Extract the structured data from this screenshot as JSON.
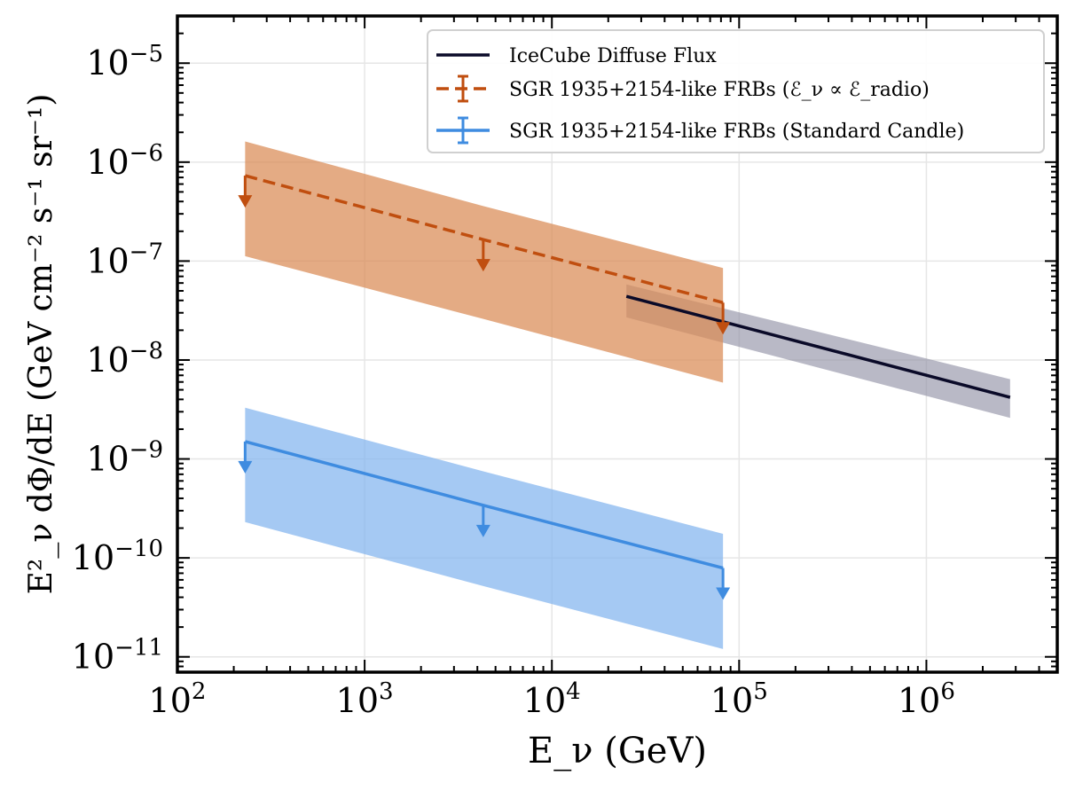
{
  "chart_data": {
    "type": "line",
    "title": "",
    "xlabel": "E_ν (GeV)",
    "ylabel": "E²_ν dΦ/dE (GeV cm⁻² s⁻¹ sr⁻¹)",
    "xscale": "log",
    "yscale": "log",
    "xlim": [
      100,
      5000000
    ],
    "ylim": [
      7e-12,
      3e-05
    ],
    "grid": true,
    "legend_position": "top-right",
    "x_major_exponents": [
      2,
      3,
      4,
      5,
      6
    ],
    "y_major_exponents": [
      -11,
      -10,
      -9,
      -8,
      -7,
      -6,
      -5
    ],
    "series": [
      {
        "name": "IceCube Diffuse Flux",
        "style": "solid",
        "color": "#0a0a28",
        "band_color": "#8a8aa0",
        "x": [
          25000,
          2800000
        ],
        "y": [
          4.4e-08,
          4.2e-09
        ],
        "band_lower": [
          2.7e-08,
          2.6e-09
        ],
        "band_upper": [
          5.8e-08,
          6.4e-09
        ]
      },
      {
        "name": "SGR 1935+2154-like FRBs (ℰ_ν ∝ ℰ_radio)",
        "style": "dashed",
        "upper_limits": true,
        "color": "#c04e0f",
        "band_color": "#d98a55",
        "x": [
          230,
          4300,
          82000
        ],
        "y": [
          7.3e-07,
          1.65e-07,
          3.8e-08
        ],
        "band_lower": [
          1.12e-07,
          2.6e-08,
          5.9e-09
        ],
        "band_upper": [
          1.62e-06,
          3.6e-07,
          8.5e-08
        ]
      },
      {
        "name": "SGR 1935+2154-like FRBs (Standard Candle)",
        "style": "solid",
        "upper_limits": true,
        "color": "#3f8ce0",
        "band_color": "#82b4ee",
        "x": [
          230,
          4300,
          82000
        ],
        "y": [
          1.5e-09,
          3.4e-10,
          7.9e-11
        ],
        "band_lower": [
          2.3e-10,
          5.2e-11,
          1.2e-11
        ],
        "band_upper": [
          3.3e-09,
          7.5e-10,
          1.75e-10
        ]
      }
    ]
  }
}
